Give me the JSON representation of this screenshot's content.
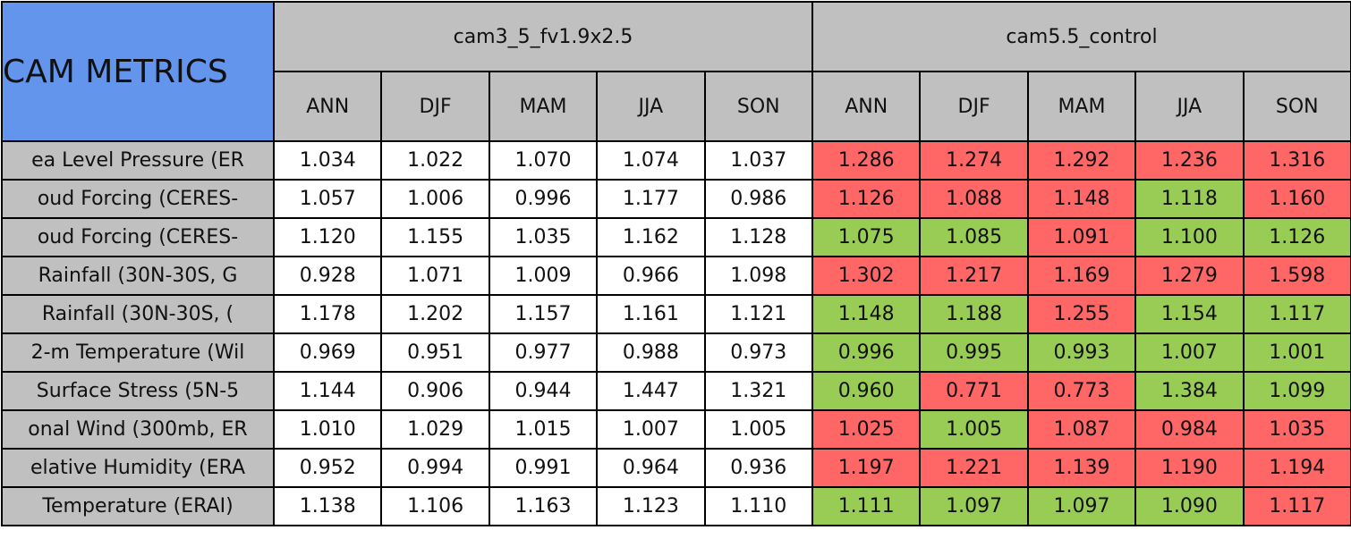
{
  "header": {
    "title": "CAM METRICS",
    "groups": [
      "cam3_5_fv1.9x2.5",
      "cam5.5_control"
    ],
    "seasons": [
      "ANN",
      "DJF",
      "MAM",
      "JJA",
      "SON",
      "ANN",
      "DJF",
      "MAM",
      "JJA",
      "SON"
    ]
  },
  "colors": {
    "red": "#ff6666",
    "green": "#99cc55"
  },
  "rows": [
    {
      "label": "ea Level Pressure (ER",
      "values": [
        "1.034",
        "1.022",
        "1.070",
        "1.074",
        "1.037",
        "1.286",
        "1.274",
        "1.292",
        "1.236",
        "1.316"
      ],
      "status": [
        "red",
        "red",
        "red",
        "red",
        "red"
      ]
    },
    {
      "label": "oud Forcing (CERES-",
      "values": [
        "1.057",
        "1.006",
        "0.996",
        "1.177",
        "0.986",
        "1.126",
        "1.088",
        "1.148",
        "1.118",
        "1.160"
      ],
      "status": [
        "red",
        "red",
        "red",
        "green",
        "red"
      ]
    },
    {
      "label": "oud Forcing (CERES-",
      "values": [
        "1.120",
        "1.155",
        "1.035",
        "1.162",
        "1.128",
        "1.075",
        "1.085",
        "1.091",
        "1.100",
        "1.126"
      ],
      "status": [
        "green",
        "green",
        "red",
        "green",
        "green"
      ]
    },
    {
      "label": "Rainfall (30N-30S, G",
      "values": [
        "0.928",
        "1.071",
        "1.009",
        "0.966",
        "1.098",
        "1.302",
        "1.217",
        "1.169",
        "1.279",
        "1.598"
      ],
      "status": [
        "red",
        "red",
        "red",
        "red",
        "red"
      ]
    },
    {
      "label": "Rainfall (30N-30S, (",
      "values": [
        "1.178",
        "1.202",
        "1.157",
        "1.161",
        "1.121",
        "1.148",
        "1.188",
        "1.255",
        "1.154",
        "1.117"
      ],
      "status": [
        "green",
        "green",
        "red",
        "green",
        "green"
      ]
    },
    {
      "label": "2-m Temperature (Wil",
      "values": [
        "0.969",
        "0.951",
        "0.977",
        "0.988",
        "0.973",
        "0.996",
        "0.995",
        "0.993",
        "1.007",
        "1.001"
      ],
      "status": [
        "green",
        "green",
        "green",
        "green",
        "green"
      ]
    },
    {
      "label": "Surface Stress (5N-5",
      "values": [
        "1.144",
        "0.906",
        "0.944",
        "1.447",
        "1.321",
        "0.960",
        "0.771",
        "0.773",
        "1.384",
        "1.099"
      ],
      "status": [
        "green",
        "red",
        "red",
        "green",
        "green"
      ]
    },
    {
      "label": "onal Wind (300mb, ER",
      "values": [
        "1.010",
        "1.029",
        "1.015",
        "1.007",
        "1.005",
        "1.025",
        "1.005",
        "1.087",
        "0.984",
        "1.035"
      ],
      "status": [
        "red",
        "green",
        "red",
        "red",
        "red"
      ]
    },
    {
      "label": "elative Humidity (ERA",
      "values": [
        "0.952",
        "0.994",
        "0.991",
        "0.964",
        "0.936",
        "1.197",
        "1.221",
        "1.139",
        "1.190",
        "1.194"
      ],
      "status": [
        "red",
        "red",
        "red",
        "red",
        "red"
      ]
    },
    {
      "label": "Temperature (ERAI)",
      "values": [
        "1.138",
        "1.106",
        "1.163",
        "1.123",
        "1.110",
        "1.111",
        "1.097",
        "1.097",
        "1.090",
        "1.117"
      ],
      "status": [
        "green",
        "green",
        "green",
        "green",
        "red"
      ]
    }
  ]
}
